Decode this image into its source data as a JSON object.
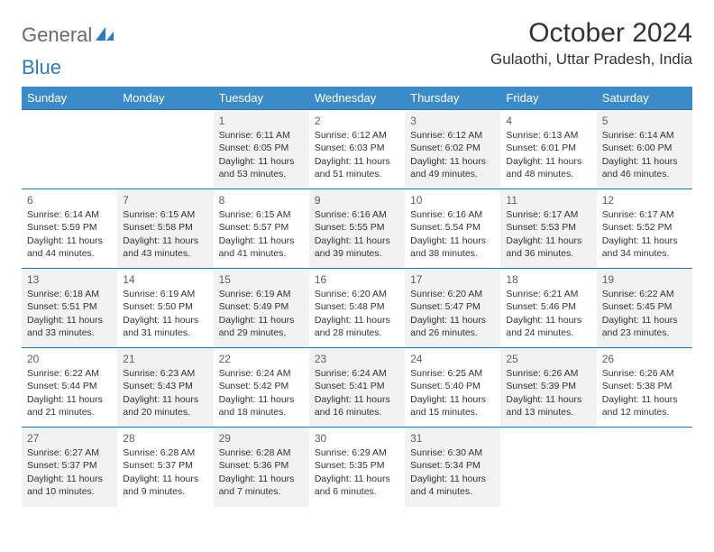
{
  "logo": {
    "part1": "General",
    "part2": "Blue"
  },
  "title": "October 2024",
  "location": "Gulaothi, Uttar Pradesh, India",
  "colors": {
    "header_bg": "#3b8bc9",
    "header_text": "#ffffff",
    "row_border": "#2f6fa8",
    "shade_bg": "#f2f2f2",
    "logo_gray": "#6a6a6a",
    "logo_blue": "#2f7bbf"
  },
  "dayNames": [
    "Sunday",
    "Monday",
    "Tuesday",
    "Wednesday",
    "Thursday",
    "Friday",
    "Saturday"
  ],
  "weeks": [
    [
      {
        "empty": true
      },
      {
        "empty": true
      },
      {
        "num": "1",
        "shade": true,
        "sunrise": "Sunrise: 6:11 AM",
        "sunset": "Sunset: 6:05 PM",
        "daylight": "Daylight: 11 hours and 53 minutes."
      },
      {
        "num": "2",
        "sunrise": "Sunrise: 6:12 AM",
        "sunset": "Sunset: 6:03 PM",
        "daylight": "Daylight: 11 hours and 51 minutes."
      },
      {
        "num": "3",
        "shade": true,
        "sunrise": "Sunrise: 6:12 AM",
        "sunset": "Sunset: 6:02 PM",
        "daylight": "Daylight: 11 hours and 49 minutes."
      },
      {
        "num": "4",
        "sunrise": "Sunrise: 6:13 AM",
        "sunset": "Sunset: 6:01 PM",
        "daylight": "Daylight: 11 hours and 48 minutes."
      },
      {
        "num": "5",
        "shade": true,
        "sunrise": "Sunrise: 6:14 AM",
        "sunset": "Sunset: 6:00 PM",
        "daylight": "Daylight: 11 hours and 46 minutes."
      }
    ],
    [
      {
        "num": "6",
        "sunrise": "Sunrise: 6:14 AM",
        "sunset": "Sunset: 5:59 PM",
        "daylight": "Daylight: 11 hours and 44 minutes."
      },
      {
        "num": "7",
        "shade": true,
        "sunrise": "Sunrise: 6:15 AM",
        "sunset": "Sunset: 5:58 PM",
        "daylight": "Daylight: 11 hours and 43 minutes."
      },
      {
        "num": "8",
        "sunrise": "Sunrise: 6:15 AM",
        "sunset": "Sunset: 5:57 PM",
        "daylight": "Daylight: 11 hours and 41 minutes."
      },
      {
        "num": "9",
        "shade": true,
        "sunrise": "Sunrise: 6:16 AM",
        "sunset": "Sunset: 5:55 PM",
        "daylight": "Daylight: 11 hours and 39 minutes."
      },
      {
        "num": "10",
        "sunrise": "Sunrise: 6:16 AM",
        "sunset": "Sunset: 5:54 PM",
        "daylight": "Daylight: 11 hours and 38 minutes."
      },
      {
        "num": "11",
        "shade": true,
        "sunrise": "Sunrise: 6:17 AM",
        "sunset": "Sunset: 5:53 PM",
        "daylight": "Daylight: 11 hours and 36 minutes."
      },
      {
        "num": "12",
        "sunrise": "Sunrise: 6:17 AM",
        "sunset": "Sunset: 5:52 PM",
        "daylight": "Daylight: 11 hours and 34 minutes."
      }
    ],
    [
      {
        "num": "13",
        "shade": true,
        "sunrise": "Sunrise: 6:18 AM",
        "sunset": "Sunset: 5:51 PM",
        "daylight": "Daylight: 11 hours and 33 minutes."
      },
      {
        "num": "14",
        "sunrise": "Sunrise: 6:19 AM",
        "sunset": "Sunset: 5:50 PM",
        "daylight": "Daylight: 11 hours and 31 minutes."
      },
      {
        "num": "15",
        "shade": true,
        "sunrise": "Sunrise: 6:19 AM",
        "sunset": "Sunset: 5:49 PM",
        "daylight": "Daylight: 11 hours and 29 minutes."
      },
      {
        "num": "16",
        "sunrise": "Sunrise: 6:20 AM",
        "sunset": "Sunset: 5:48 PM",
        "daylight": "Daylight: 11 hours and 28 minutes."
      },
      {
        "num": "17",
        "shade": true,
        "sunrise": "Sunrise: 6:20 AM",
        "sunset": "Sunset: 5:47 PM",
        "daylight": "Daylight: 11 hours and 26 minutes."
      },
      {
        "num": "18",
        "sunrise": "Sunrise: 6:21 AM",
        "sunset": "Sunset: 5:46 PM",
        "daylight": "Daylight: 11 hours and 24 minutes."
      },
      {
        "num": "19",
        "shade": true,
        "sunrise": "Sunrise: 6:22 AM",
        "sunset": "Sunset: 5:45 PM",
        "daylight": "Daylight: 11 hours and 23 minutes."
      }
    ],
    [
      {
        "num": "20",
        "sunrise": "Sunrise: 6:22 AM",
        "sunset": "Sunset: 5:44 PM",
        "daylight": "Daylight: 11 hours and 21 minutes."
      },
      {
        "num": "21",
        "shade": true,
        "sunrise": "Sunrise: 6:23 AM",
        "sunset": "Sunset: 5:43 PM",
        "daylight": "Daylight: 11 hours and 20 minutes."
      },
      {
        "num": "22",
        "sunrise": "Sunrise: 6:24 AM",
        "sunset": "Sunset: 5:42 PM",
        "daylight": "Daylight: 11 hours and 18 minutes."
      },
      {
        "num": "23",
        "shade": true,
        "sunrise": "Sunrise: 6:24 AM",
        "sunset": "Sunset: 5:41 PM",
        "daylight": "Daylight: 11 hours and 16 minutes."
      },
      {
        "num": "24",
        "sunrise": "Sunrise: 6:25 AM",
        "sunset": "Sunset: 5:40 PM",
        "daylight": "Daylight: 11 hours and 15 minutes."
      },
      {
        "num": "25",
        "shade": true,
        "sunrise": "Sunrise: 6:26 AM",
        "sunset": "Sunset: 5:39 PM",
        "daylight": "Daylight: 11 hours and 13 minutes."
      },
      {
        "num": "26",
        "sunrise": "Sunrise: 6:26 AM",
        "sunset": "Sunset: 5:38 PM",
        "daylight": "Daylight: 11 hours and 12 minutes."
      }
    ],
    [
      {
        "num": "27",
        "shade": true,
        "sunrise": "Sunrise: 6:27 AM",
        "sunset": "Sunset: 5:37 PM",
        "daylight": "Daylight: 11 hours and 10 minutes."
      },
      {
        "num": "28",
        "sunrise": "Sunrise: 6:28 AM",
        "sunset": "Sunset: 5:37 PM",
        "daylight": "Daylight: 11 hours and 9 minutes."
      },
      {
        "num": "29",
        "shade": true,
        "sunrise": "Sunrise: 6:28 AM",
        "sunset": "Sunset: 5:36 PM",
        "daylight": "Daylight: 11 hours and 7 minutes."
      },
      {
        "num": "30",
        "sunrise": "Sunrise: 6:29 AM",
        "sunset": "Sunset: 5:35 PM",
        "daylight": "Daylight: 11 hours and 6 minutes."
      },
      {
        "num": "31",
        "shade": true,
        "sunrise": "Sunrise: 6:30 AM",
        "sunset": "Sunset: 5:34 PM",
        "daylight": "Daylight: 11 hours and 4 minutes."
      },
      {
        "empty": true
      },
      {
        "empty": true
      }
    ]
  ]
}
